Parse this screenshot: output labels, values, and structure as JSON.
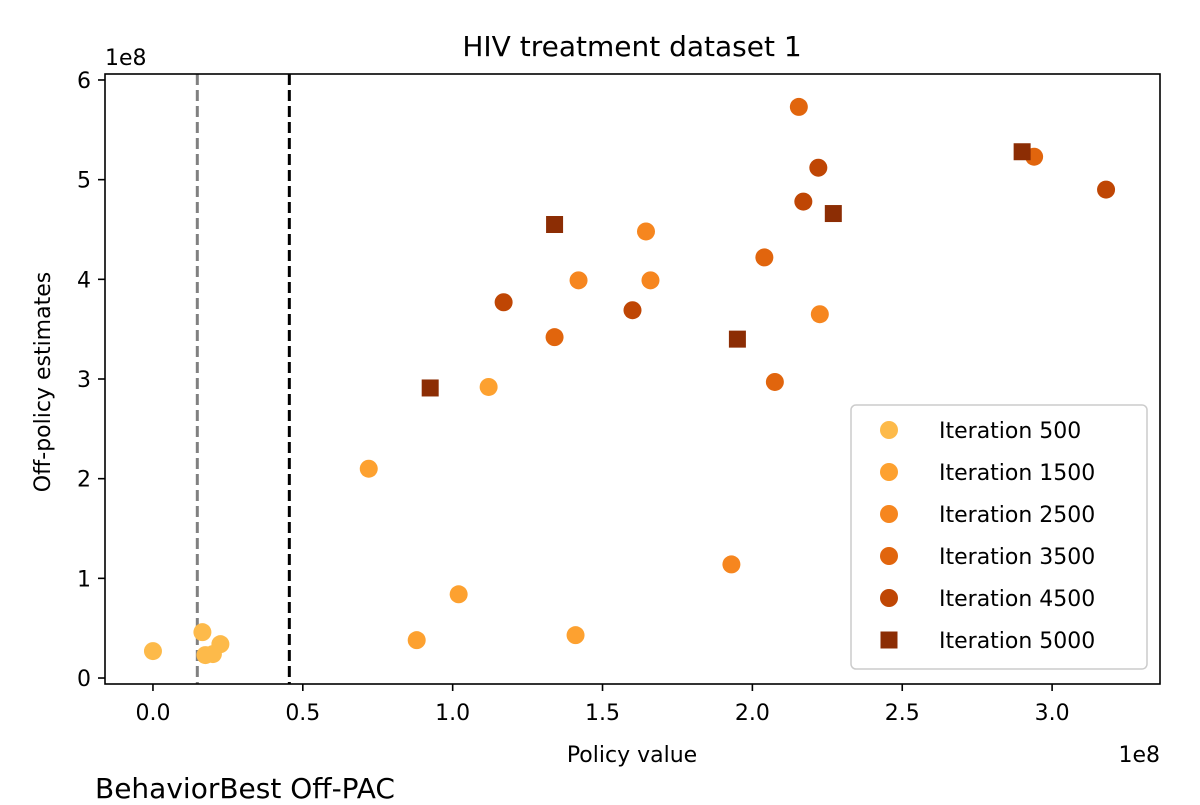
{
  "chart_data": {
    "type": "scatter",
    "title": "HIV treatment dataset 1",
    "xlabel": "Policy value",
    "ylabel": "Off-policy estimates",
    "x_scale_label": "1e8",
    "y_scale_label": "1e8",
    "xlim": [
      -0.16,
      3.36
    ],
    "ylim": [
      -0.06,
      6.06
    ],
    "xticks": [
      0.0,
      0.5,
      1.0,
      1.5,
      2.0,
      2.5,
      3.0
    ],
    "xtick_labels": [
      "0.0",
      "0.5",
      "1.0",
      "1.5",
      "2.0",
      "2.5",
      "3.0"
    ],
    "yticks": [
      0,
      1,
      2,
      3,
      4,
      5,
      6
    ],
    "ytick_labels": [
      "0",
      "1",
      "2",
      "3",
      "4",
      "5",
      "6"
    ],
    "legend_position": "lower-right",
    "reference_lines": [
      {
        "name": "Behavior",
        "x": 0.148,
        "color": "#808080",
        "style": "dashed"
      },
      {
        "name": "Best Off-PAC",
        "x": 0.455,
        "color": "#000000",
        "style": "dashed"
      }
    ],
    "series": [
      {
        "name": "Iteration 500",
        "marker": "circle",
        "color": "#FDBA4A",
        "points": [
          [
            0.0,
            0.27
          ],
          [
            0.165,
            0.46
          ],
          [
            0.175,
            0.23
          ],
          [
            0.2,
            0.24
          ],
          [
            0.225,
            0.34
          ]
        ]
      },
      {
        "name": "Iteration 1500",
        "marker": "circle",
        "color": "#FDA130",
        "points": [
          [
            0.72,
            2.1
          ],
          [
            0.88,
            0.38
          ],
          [
            1.02,
            0.84
          ],
          [
            1.12,
            2.92
          ],
          [
            1.41,
            0.43
          ]
        ]
      },
      {
        "name": "Iteration 2500",
        "marker": "circle",
        "color": "#F6861F",
        "points": [
          [
            1.42,
            3.99
          ],
          [
            1.645,
            4.48
          ],
          [
            1.66,
            3.99
          ],
          [
            1.93,
            1.14
          ],
          [
            2.225,
            3.65
          ]
        ]
      },
      {
        "name": "Iteration 3500",
        "marker": "circle",
        "color": "#E1650D",
        "points": [
          [
            1.34,
            3.42
          ],
          [
            2.04,
            4.22
          ],
          [
            2.075,
            2.97
          ],
          [
            2.155,
            5.73
          ],
          [
            2.94,
            5.23
          ]
        ]
      },
      {
        "name": "Iteration 4500",
        "marker": "circle",
        "color": "#BF4604",
        "points": [
          [
            1.17,
            3.77
          ],
          [
            1.6,
            3.69
          ],
          [
            2.17,
            4.78
          ],
          [
            2.22,
            5.12
          ],
          [
            3.18,
            4.9
          ]
        ]
      },
      {
        "name": "Iteration 5000",
        "marker": "square",
        "color": "#8C2D04",
        "points": [
          [
            0.925,
            2.91
          ],
          [
            1.34,
            4.55
          ],
          [
            1.95,
            3.4
          ],
          [
            2.27,
            4.66
          ],
          [
            2.9,
            5.28
          ]
        ]
      }
    ]
  }
}
